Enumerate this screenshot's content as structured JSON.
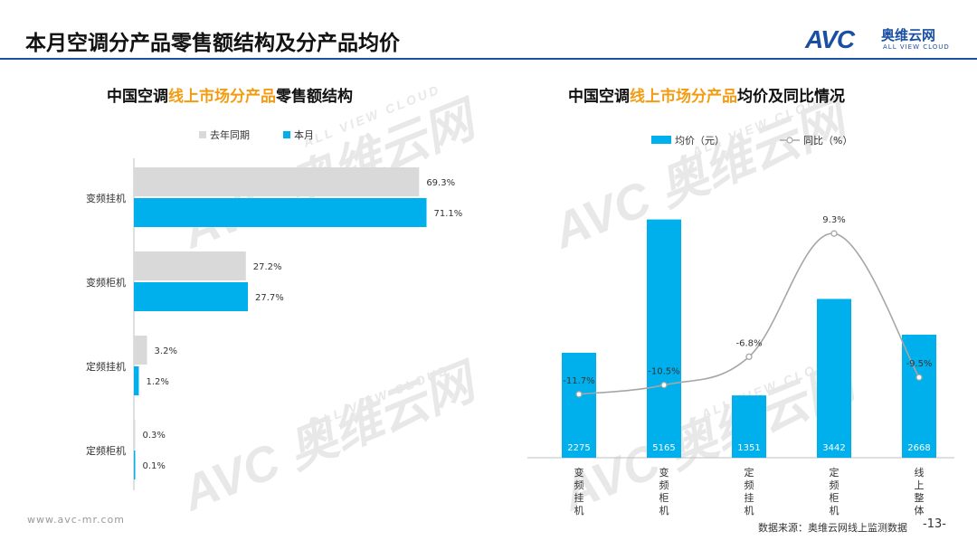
{
  "header": {
    "title": "本月空调分产品零售额结构及分产品均价",
    "logo_mark": "AVC",
    "logo_cn": "奥维云网",
    "logo_en": "ALL VIEW CLOUD"
  },
  "watermark": {
    "mark": "AVC",
    "cn": "奥维云网",
    "en": "ALL VIEW CLOUD"
  },
  "left_title": {
    "prefix": "中国空调",
    "highlight": "线上市场分产品",
    "suffix": "零售额结构"
  },
  "right_title": {
    "prefix": "中国空调",
    "highlight": "线上市场分产品",
    "suffix": "均价及同比情况"
  },
  "footer": {
    "url": "www.avc-mr.com",
    "source": "数据来源：奥维云网线上监测数据",
    "page": "-13-"
  },
  "colors": {
    "last_year": "#d9d9d9",
    "current": "#00b0ec",
    "line": "#a6a6a6",
    "highlight": "#f39c12"
  },
  "chart_data": [
    {
      "type": "bar",
      "orientation": "horizontal",
      "title": "中国空调线上市场分产品零售额结构",
      "categories": [
        "变频挂机",
        "变频柜机",
        "定频挂机",
        "定频柜机"
      ],
      "series": [
        {
          "name": "去年同期",
          "values": [
            69.3,
            27.2,
            3.2,
            0.3
          ]
        },
        {
          "name": "本月",
          "values": [
            71.1,
            27.7,
            1.2,
            0.1
          ]
        }
      ],
      "value_suffix": "%",
      "xlim": [
        0,
        100
      ],
      "legend": "top"
    },
    {
      "type": "bar",
      "title": "中国空调线上市场分产品均价及同比情况",
      "categories": [
        "变频挂机",
        "变频柜机",
        "定频挂机",
        "定频柜机",
        "线上整体"
      ],
      "bars": {
        "name": "均价（元）",
        "values": [
          2275,
          5165,
          1351,
          3442,
          2668
        ]
      },
      "line": {
        "name": "同比（%）",
        "values": [
          -11.7,
          -10.5,
          -6.8,
          9.3,
          -9.5
        ]
      },
      "ylim_bars": [
        0,
        6000
      ],
      "ylim_line": [
        -20,
        15
      ],
      "legend": "top"
    }
  ]
}
